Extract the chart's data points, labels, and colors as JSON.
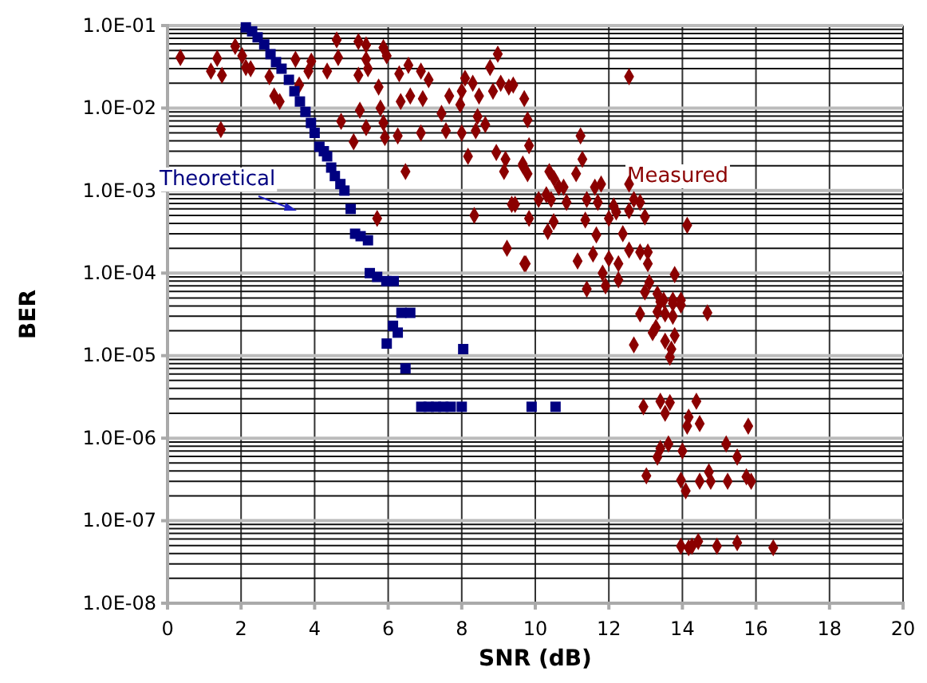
{
  "chart_data": {
    "type": "scatter",
    "xlabel": "SNR (dB)",
    "ylabel": "BER",
    "log": "y",
    "grid": true,
    "legend": false,
    "xlim": [
      0,
      20
    ],
    "xticks": [
      0,
      2,
      4,
      6,
      8,
      10,
      12,
      14,
      16,
      18,
      20
    ],
    "ylim": [
      1e-08,
      0.1
    ],
    "yticks": [
      {
        "value": 1e-08,
        "label": "1.0E-08"
      },
      {
        "value": 1e-07,
        "label": "1.0E-07"
      },
      {
        "value": 1e-06,
        "label": "1.0E-06"
      },
      {
        "value": 1e-05,
        "label": "1.0E-05"
      },
      {
        "value": 0.0001,
        "label": "1.0E-04"
      },
      {
        "value": 0.001,
        "label": "1.0E-03"
      },
      {
        "value": 0.01,
        "label": "1.0E-02"
      },
      {
        "value": 0.1,
        "label": "1.0E-01"
      }
    ],
    "series": [
      {
        "name": "Measured",
        "color": "#8b0000",
        "marker": "diamond",
        "x": [
          0.35,
          1.18,
          1.35,
          1.48,
          1.45,
          1.84,
          2.03,
          2.13,
          2.26,
          2.77,
          2.9,
          3.05,
          3.48,
          3.58,
          3.91,
          3.83,
          4.34,
          4.6,
          4.64,
          4.72,
          5.06,
          5.19,
          5.4,
          5.4,
          5.45,
          5.19,
          5.23,
          5.4,
          5.74,
          5.79,
          5.87,
          5.91,
          5.87,
          5.96,
          5.7,
          6.3,
          6.34,
          6.26,
          6.47,
          6.55,
          6.6,
          6.89,
          6.89,
          6.94,
          7.1,
          7.45,
          7.57,
          7.66,
          8.0,
          7.96,
          8.0,
          8.09,
          8.17,
          8.3,
          8.34,
          8.43,
          8.38,
          8.47,
          8.64,
          8.77,
          8.85,
          8.94,
          8.98,
          9.06,
          9.19,
          9.23,
          9.4,
          9.66,
          9.7,
          9.7,
          9.83,
          9.83,
          9.45,
          12.55,
          9.28,
          9.79,
          9.15,
          9.66,
          9.79,
          11.23,
          11.28,
          10.38,
          10.51,
          11.11,
          10.09,
          10.3,
          10.43,
          10.85,
          10.64,
          10.77,
          11.62,
          11.79,
          11.4,
          11.7,
          12.55,
          12.68,
          12.85,
          12.13,
          12.2,
          12.55,
          12.98,
          9.36,
          10.5,
          11.36,
          12.0,
          14.13,
          10.34,
          11.66,
          12.38,
          11.57,
          12.0,
          12.26,
          12.55,
          12.85,
          13.06,
          13.06,
          11.15,
          9.74,
          11.83,
          13.79,
          11.4,
          11.91,
          12.26,
          12.98,
          13.1,
          13.32,
          13.49,
          13.74,
          13.96,
          13.4,
          13.74,
          13.96,
          14.68,
          12.85,
          13.32,
          13.53,
          13.74,
          13.28,
          13.19,
          13.79,
          12.68,
          13.53,
          13.7,
          13.66,
          12.94,
          13.4,
          13.66,
          14.38,
          13.53,
          14.17,
          14.47,
          14.13,
          15.79,
          13.62,
          13.4,
          13.32,
          14.0,
          15.19,
          15.49,
          13.02,
          13.96,
          14.72,
          14.47,
          14.77,
          15.23,
          14.09,
          15.74,
          15.87,
          13.96,
          14.17,
          14.43,
          14.94,
          15.49,
          16.47,
          14.26
        ],
        "values": [
          0.041,
          0.028,
          0.04,
          0.025,
          0.0055,
          0.056,
          0.043,
          0.031,
          0.03,
          0.024,
          0.014,
          0.012,
          0.039,
          0.019,
          0.037,
          0.028,
          0.028,
          0.067,
          0.041,
          0.0069,
          0.0039,
          0.064,
          0.058,
          0.039,
          0.03,
          0.025,
          0.0094,
          0.0058,
          0.018,
          0.01,
          0.0066,
          0.0044,
          0.054,
          0.043,
          0.00046,
          0.026,
          0.012,
          0.0046,
          0.0017,
          0.033,
          0.014,
          0.028,
          0.005,
          0.013,
          0.022,
          0.0086,
          0.0053,
          0.014,
          0.016,
          0.011,
          0.005,
          0.023,
          0.0026,
          0.02,
          0.0005,
          0.0079,
          0.0053,
          0.014,
          0.0063,
          0.031,
          0.016,
          0.0029,
          0.045,
          0.02,
          0.0024,
          0.0002,
          0.019,
          0.002,
          0.00013,
          0.013,
          0.0035,
          0.00046,
          0.00068,
          0.024,
          0.018,
          0.0072,
          0.0017,
          0.0021,
          0.0016,
          0.0046,
          0.0024,
          0.0017,
          0.0014,
          0.0016,
          0.00078,
          0.00089,
          0.00078,
          0.00072,
          0.0011,
          0.0011,
          0.0011,
          0.0012,
          0.00078,
          0.00072,
          0.0012,
          0.00078,
          0.00072,
          0.00065,
          0.00055,
          0.00057,
          0.00048,
          0.00068,
          0.00042,
          0.00044,
          0.00046,
          0.00038,
          0.00032,
          0.00029,
          0.0003,
          0.00017,
          0.00015,
          0.00013,
          0.00019,
          0.00018,
          0.00018,
          0.00013,
          0.00014,
          0.00013,
          0.0001,
          9.6e-05,
          6.4e-05,
          7e-05,
          8.3e-05,
          5.9e-05,
          7.7e-05,
          5.6e-05,
          4.7e-05,
          4.7e-05,
          4.7e-05,
          4.5e-05,
          4.3e-05,
          4.1e-05,
          3.3e-05,
          3.2e-05,
          3.4e-05,
          3.2e-05,
          3e-05,
          2.2e-05,
          1.9e-05,
          1.75e-05,
          1.35e-05,
          1.5e-05,
          1.2e-05,
          9.6e-06,
          2.4e-06,
          2.8e-06,
          2.7e-06,
          2.8e-06,
          2e-06,
          1.8e-06,
          1.5e-06,
          1.4e-06,
          1.4e-06,
          8.5e-07,
          7.5e-07,
          5.9e-07,
          7e-07,
          8.5e-07,
          5.9e-07,
          3.5e-07,
          3.1e-07,
          3.9e-07,
          3e-07,
          3e-07,
          3e-07,
          2.3e-07,
          3.4e-07,
          3e-07,
          4.9e-08,
          4.7e-08,
          5.6e-08,
          4.9e-08,
          5.4e-08,
          4.7e-08,
          4.9e-08
        ]
      },
      {
        "name": "Theoretical",
        "color": "#000080",
        "marker": "square",
        "x": [
          2.13,
          2.3,
          2.45,
          2.63,
          2.8,
          2.95,
          3.1,
          3.3,
          3.45,
          3.6,
          3.75,
          3.9,
          4.0,
          4.13,
          4.25,
          4.34,
          4.45,
          4.55,
          4.7,
          4.81,
          4.98,
          5.1,
          5.25,
          5.45,
          5.5,
          5.7,
          5.95,
          6.15,
          6.36,
          6.6,
          6.13,
          6.26,
          5.96,
          8.04,
          6.47,
          6.9,
          7.1,
          7.3,
          7.5,
          7.7,
          8.0,
          9.9,
          10.55
        ],
        "values": [
          0.095,
          0.085,
          0.072,
          0.059,
          0.045,
          0.036,
          0.03,
          0.022,
          0.016,
          0.012,
          0.009,
          0.0066,
          0.005,
          0.0034,
          0.003,
          0.0026,
          0.0019,
          0.0015,
          0.0012,
          0.001,
          0.0006,
          0.0003,
          0.00028,
          0.00025,
          0.0001,
          9e-05,
          8e-05,
          8e-05,
          3.3e-05,
          3.3e-05,
          2.3e-05,
          1.9e-05,
          1.4e-05,
          1.2e-05,
          7e-06,
          2.4e-06,
          2.4e-06,
          2.4e-06,
          2.4e-06,
          2.4e-06,
          2.4e-06,
          2.4e-06,
          2.4e-06
        ]
      }
    ]
  }
}
